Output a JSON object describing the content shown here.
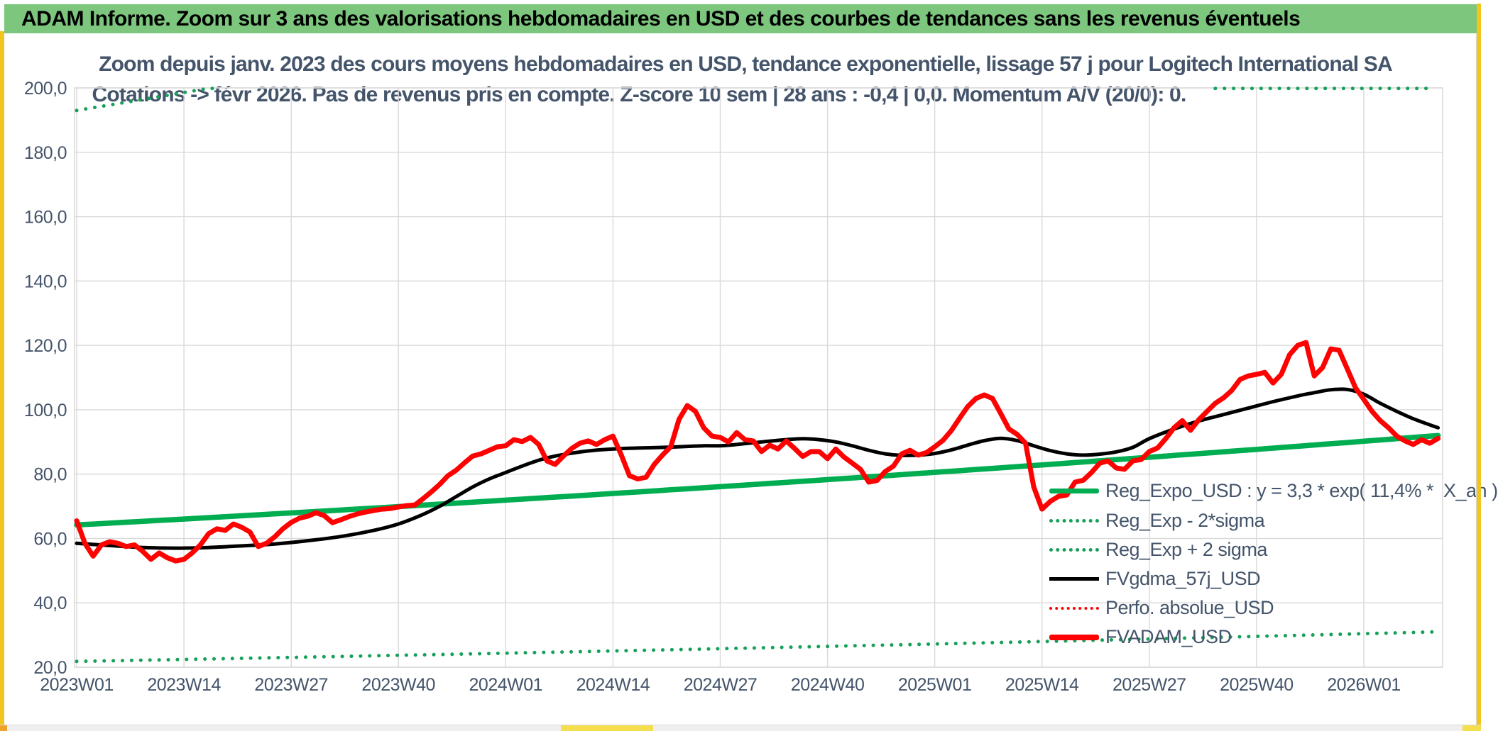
{
  "banner": {
    "text": "ADAM Informe. Zoom sur 3 ans des valorisations hebdomadaires en USD et des courbes de tendances sans les revenus éventuels"
  },
  "colors": {
    "banner_green": "#7CC67E",
    "text_dark": "#44546A",
    "gridline": "#D9D9D9",
    "series_green": "#00AD51",
    "series_green_dotted": "#17A05A",
    "series_red": "#FE0101",
    "series_black": "#000000",
    "edge_yellow": "#F2C41E"
  },
  "chart_data": {
    "type": "line",
    "title": "Zoom depuis janv. 2023 des cours moyens hebdomadaires en USD, tendance exponentielle, lissage 57 j pour Logitech International SA",
    "subtitle": "Cotations -> févr 2026. Pas de revenus pris en compte. Z-score 10 sem | 28 ans : -0,4 | 0,0. Momentum A/V (20/0): 0.",
    "ylim": [
      20,
      200
    ],
    "y_tick_values": [
      200,
      180,
      160,
      140,
      120,
      100,
      80,
      60,
      40,
      20
    ],
    "y_tick_labels": [
      "200,0",
      "180,0",
      "160,0",
      "140,0",
      "120,0",
      "100,0",
      "80,0",
      "60,0",
      "40,0",
      "20,0"
    ],
    "x_tick_labels": [
      "2023W01",
      "2023W14",
      "2023W27",
      "2023W40",
      "2024W01",
      "2024W14",
      "2024W27",
      "2024W40",
      "2025W01",
      "2025W14",
      "2025W27",
      "2025W40",
      "2026W01"
    ],
    "x_weeks_per_tick": 13,
    "x_weeks_total": 166,
    "grid": true,
    "legend_position": "inside-bottom-right",
    "legend": [
      {
        "label": "Reg_Expo_USD : y = 3,3 * exp( 11,4% *  X_an )",
        "style": "solid-thick",
        "color": "#00AD51"
      },
      {
        "label": "Reg_Exp - 2*sigma",
        "style": "dotted",
        "color": "#17A05A"
      },
      {
        "label": "Reg_Exp + 2 sigma",
        "style": "dotted",
        "color": "#17A05A"
      },
      {
        "label": "FVgdma_57j_USD",
        "style": "solid",
        "color": "#000000"
      },
      {
        "label": "Perfo. absolue_USD",
        "style": "dotted",
        "color": "#FE0101"
      },
      {
        "label": "FVADAM_USD",
        "style": "solid-thick",
        "color": "#FE0101"
      }
    ],
    "fvadam_weekly": [
      65.5,
      58.5,
      54.5,
      58,
      59,
      58.5,
      57.5,
      58,
      56,
      53.5,
      55.5,
      54,
      53,
      53.5,
      55.5,
      58,
      61.5,
      63,
      62.5,
      64.5,
      63.5,
      62,
      57.5,
      58.5,
      60.5,
      63,
      65,
      66.3,
      66.9,
      68,
      67.1,
      64.9,
      65.8,
      66.8,
      67.6,
      68.2,
      68.7,
      69.1,
      69.3,
      69.8,
      70.2,
      70.4,
      72.4,
      74.5,
      76.8,
      79.5,
      81.2,
      83.5,
      85.6,
      86.3,
      87.4,
      88.5,
      88.8,
      90.7,
      90.1,
      91.4,
      89.2,
      84.1,
      83,
      85.6,
      88,
      89.6,
      90.3,
      89.2,
      90.7,
      91.8,
      86,
      79.5,
      78.5,
      79,
      83,
      85.9,
      88.5,
      97,
      101.3,
      99.5,
      94.4,
      91.8,
      91.4,
      90,
      92.9,
      90.7,
      90.3,
      87,
      89,
      87.8,
      90.3,
      88,
      85.5,
      87,
      87,
      84.8,
      87.8,
      85.3,
      83.4,
      81.5,
      77.5,
      78,
      80.8,
      82.5,
      86.3,
      87.4,
      85.9,
      86.7,
      88.5,
      90.5,
      93.5,
      97.3,
      101,
      103.5,
      104.6,
      103.5,
      98.8,
      94,
      92.3,
      89.6,
      76,
      69.1,
      71.5,
      73.1,
      73.5,
      77.5,
      78.1,
      80.5,
      83.4,
      84.1,
      81.9,
      81.5,
      84.1,
      84.5,
      87,
      88.1,
      91,
      94.4,
      96.6,
      93.6,
      96.9,
      99.5,
      102,
      103.7,
      106,
      109.4,
      110.5,
      111,
      111.6,
      108.3,
      111,
      117.1,
      120,
      120.9,
      110.5,
      113.1,
      118.9,
      118.5,
      112.7,
      106.8,
      103.2,
      99.5,
      96.6,
      94.4,
      91.8,
      90.3,
      89.2,
      90.7,
      89.6,
      91.1
    ],
    "series": [
      {
        "name": "Reg_Exp + 2 sigma",
        "kind": "exp_segments",
        "start_value": 193.0,
        "annual_rate": 0.114,
        "visible_week_ranges": [
          [
            0,
            16.6
          ],
          [
            138,
            164.3
          ]
        ],
        "clip_max": 199.85,
        "color": "#17A05A",
        "dotted": true,
        "width": 5
      },
      {
        "name": "Reg_Exp - 2*sigma",
        "kind": "exp_range",
        "start_value": 21.8,
        "end_value": 31.0,
        "color": "#17A05A",
        "dotted": true,
        "width": 5
      },
      {
        "name": "Reg_Expo_USD",
        "kind": "exp_range",
        "start_value": 64.2,
        "end_value": 92.0,
        "color": "#00AD51",
        "dotted": false,
        "width": 7.5
      },
      {
        "name": "FVgdma_57j_USD",
        "kind": "control_points",
        "color": "#000000",
        "dotted": false,
        "width": 5,
        "points": [
          [
            0,
            58.5
          ],
          [
            4,
            57.8
          ],
          [
            8,
            57.2
          ],
          [
            12,
            57
          ],
          [
            16,
            57.2
          ],
          [
            20,
            57.7
          ],
          [
            24,
            58.3
          ],
          [
            28,
            59.3
          ],
          [
            32,
            60.6
          ],
          [
            36,
            62.5
          ],
          [
            39,
            64.5
          ],
          [
            42,
            67.5
          ],
          [
            44,
            70
          ],
          [
            46,
            73
          ],
          [
            48,
            76
          ],
          [
            50,
            78.5
          ],
          [
            52,
            80.5
          ],
          [
            54,
            82.5
          ],
          [
            56,
            84.3
          ],
          [
            58,
            85.6
          ],
          [
            60,
            86.5
          ],
          [
            62,
            87.2
          ],
          [
            65,
            87.8
          ],
          [
            68,
            88.1
          ],
          [
            71,
            88.3
          ],
          [
            74,
            88.6
          ],
          [
            76,
            88.8
          ],
          [
            78,
            88.8
          ],
          [
            80,
            89.2
          ],
          [
            83,
            90
          ],
          [
            86,
            90.7
          ],
          [
            88,
            91
          ],
          [
            90,
            90.7
          ],
          [
            92,
            90
          ],
          [
            94,
            88.8
          ],
          [
            96,
            87.4
          ],
          [
            98,
            86.3
          ],
          [
            100,
            85.8
          ],
          [
            102,
            85.9
          ],
          [
            104,
            86.4
          ],
          [
            106,
            87.5
          ],
          [
            108,
            89
          ],
          [
            110,
            90.4
          ],
          [
            112,
            91.1
          ],
          [
            114,
            90.4
          ],
          [
            116,
            88.8
          ],
          [
            118,
            87.3
          ],
          [
            120,
            86.3
          ],
          [
            122,
            85.9
          ],
          [
            124,
            86.2
          ],
          [
            126,
            86.9
          ],
          [
            128,
            88.3
          ],
          [
            130,
            91
          ],
          [
            133,
            94
          ],
          [
            136,
            96.5
          ],
          [
            139,
            98.5
          ],
          [
            142,
            100.5
          ],
          [
            145,
            102.5
          ],
          [
            148,
            104.3
          ],
          [
            150,
            105.3
          ],
          [
            152,
            106.2
          ],
          [
            154,
            106.3
          ],
          [
            156,
            104.8
          ],
          [
            158,
            102
          ],
          [
            160,
            99.5
          ],
          [
            162,
            97.2
          ],
          [
            164,
            95.3
          ],
          [
            165,
            94.4
          ]
        ]
      },
      {
        "name": "Perfo. absolue_USD",
        "kind": "weekly_ref",
        "ref": "fvadam_weekly",
        "coincides_with": "FVADAM_USD",
        "color": "#FE0101",
        "dotted": true,
        "width": 3
      },
      {
        "name": "FVADAM_USD",
        "kind": "weekly_ref",
        "ref": "fvadam_weekly",
        "color": "#FE0101",
        "dotted": false,
        "width": 7
      }
    ]
  }
}
